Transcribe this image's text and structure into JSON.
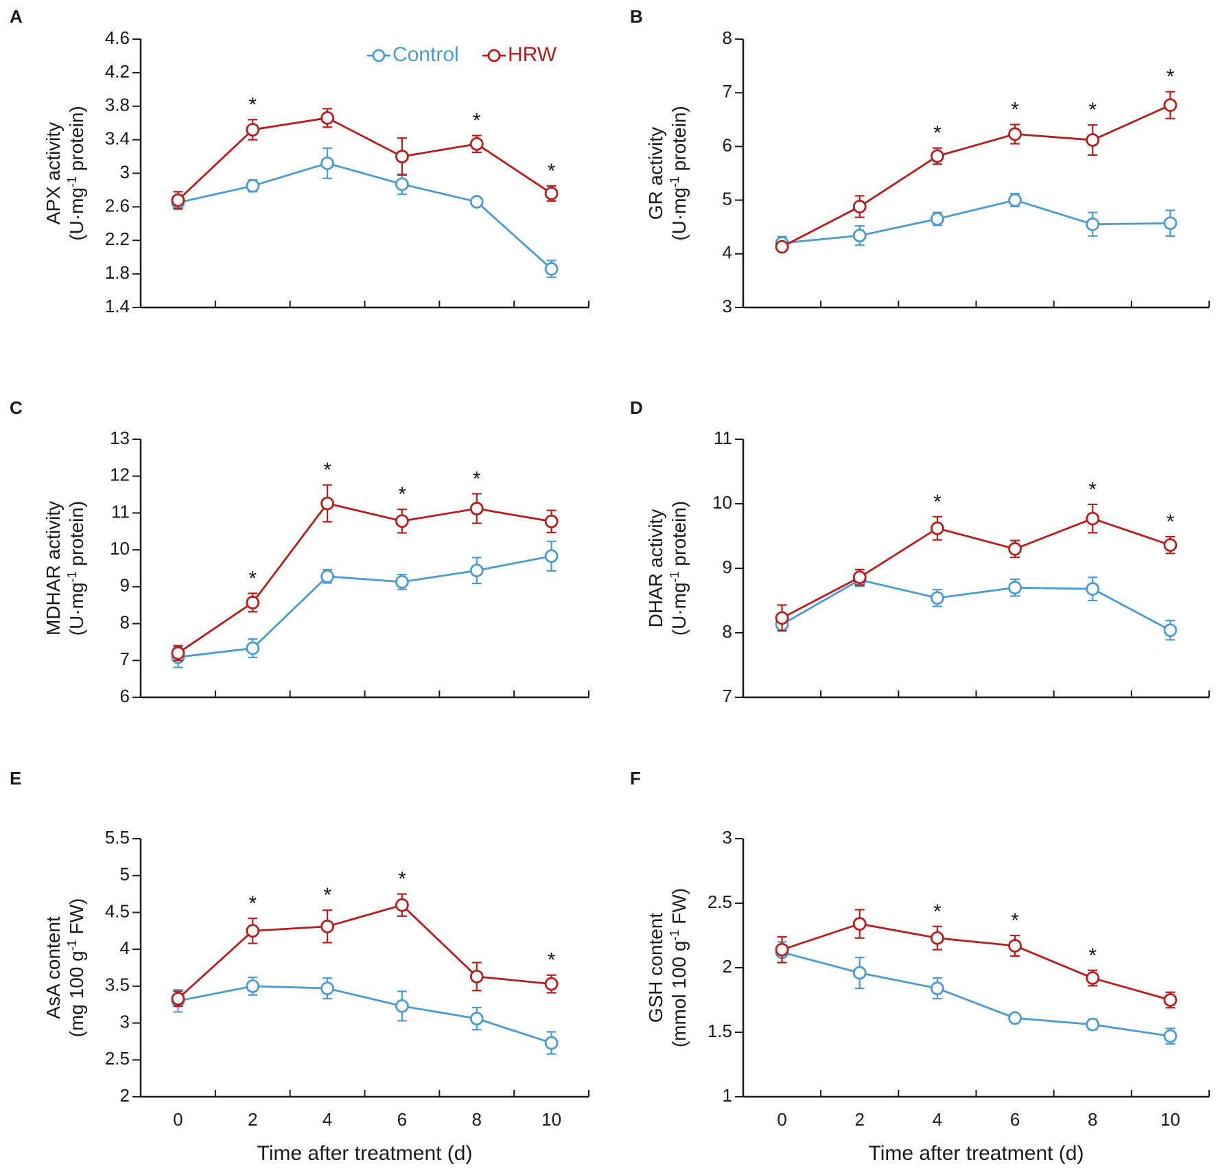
{
  "colors": {
    "control": "#4a9ad4",
    "hrw": "#b81c1c",
    "axis": "#1a1a1a"
  },
  "legend": {
    "control": "Control",
    "hrw": "HRW"
  },
  "x_title": "Time after treatment (d)",
  "x_ticks": [
    "0",
    "2",
    "4",
    "6",
    "8",
    "10"
  ],
  "chart_data": [
    {
      "panel": "A",
      "type": "line",
      "ylabel_line1": "APX activity",
      "ylabel_line2_pre": "(U·mg",
      "ylabel_sup": "-1",
      "ylabel_line2_post": " protein)",
      "ylim": [
        1.4,
        4.6
      ],
      "yticks": [
        "1.4",
        "1.8",
        "2.2",
        "2.6",
        "3",
        "3.4",
        "3.8",
        "4.2",
        "4.6"
      ],
      "x": [
        0,
        2,
        4,
        6,
        8,
        10
      ],
      "series": [
        {
          "name": "Control",
          "values": [
            2.65,
            2.85,
            3.12,
            2.87,
            2.66,
            1.86
          ],
          "errors": [
            0.08,
            0.07,
            0.18,
            0.12,
            0.05,
            0.1
          ]
        },
        {
          "name": "HRW",
          "values": [
            2.68,
            3.52,
            3.66,
            3.2,
            3.35,
            2.76
          ],
          "errors": [
            0.1,
            0.12,
            0.11,
            0.22,
            0.1,
            0.09
          ]
        }
      ],
      "significance": [
        false,
        true,
        false,
        false,
        true,
        true
      ],
      "show_legend": true
    },
    {
      "panel": "B",
      "type": "line",
      "ylabel_line1": "GR activity",
      "ylabel_line2_pre": "(U·mg",
      "ylabel_sup": "-1",
      "ylabel_line2_post": " protein)",
      "ylim": [
        3,
        8
      ],
      "yticks": [
        "3",
        "4",
        "5",
        "6",
        "7",
        "8"
      ],
      "x": [
        0,
        2,
        4,
        6,
        8,
        10
      ],
      "series": [
        {
          "name": "Control",
          "values": [
            4.2,
            4.34,
            4.65,
            5.0,
            4.55,
            4.57
          ],
          "errors": [
            0.12,
            0.18,
            0.12,
            0.12,
            0.22,
            0.24
          ]
        },
        {
          "name": "HRW",
          "values": [
            4.13,
            4.88,
            5.82,
            6.23,
            6.12,
            6.77
          ],
          "errors": [
            0.06,
            0.2,
            0.15,
            0.18,
            0.28,
            0.25
          ]
        }
      ],
      "significance": [
        false,
        false,
        true,
        true,
        true,
        true
      ],
      "show_legend": false
    },
    {
      "panel": "C",
      "type": "line",
      "ylabel_line1": "MDHAR activity",
      "ylabel_line2_pre": "(U·mg",
      "ylabel_sup": "-1",
      "ylabel_line2_post": " protein)",
      "ylim": [
        6,
        13
      ],
      "yticks": [
        "6",
        "7",
        "8",
        "9",
        "10",
        "11",
        "12",
        "13"
      ],
      "x": [
        0,
        2,
        4,
        6,
        8,
        10
      ],
      "series": [
        {
          "name": "Control",
          "values": [
            7.09,
            7.33,
            9.28,
            9.13,
            9.44,
            9.83
          ],
          "errors": [
            0.28,
            0.25,
            0.18,
            0.2,
            0.35,
            0.4
          ]
        },
        {
          "name": "HRW",
          "values": [
            7.2,
            8.57,
            11.26,
            10.78,
            11.12,
            10.77
          ],
          "errors": [
            0.2,
            0.25,
            0.5,
            0.32,
            0.4,
            0.3
          ]
        }
      ],
      "significance": [
        false,
        true,
        true,
        true,
        true,
        false
      ],
      "show_legend": false
    },
    {
      "panel": "D",
      "type": "line",
      "ylabel_line1": "DHAR activity",
      "ylabel_line2_pre": "(U·mg",
      "ylabel_sup": "-1",
      "ylabel_line2_post": " protein)",
      "ylim": [
        7,
        11
      ],
      "yticks": [
        "7",
        "8",
        "9",
        "10",
        "11"
      ],
      "x": [
        0,
        2,
        4,
        6,
        8,
        10
      ],
      "series": [
        {
          "name": "Control",
          "values": [
            8.13,
            8.82,
            8.54,
            8.7,
            8.68,
            8.04
          ],
          "errors": [
            0.1,
            0.1,
            0.13,
            0.13,
            0.18,
            0.15
          ]
        },
        {
          "name": "HRW",
          "values": [
            8.23,
            8.86,
            9.62,
            9.3,
            9.77,
            9.36
          ],
          "errors": [
            0.2,
            0.12,
            0.18,
            0.13,
            0.22,
            0.13
          ]
        }
      ],
      "significance": [
        false,
        false,
        true,
        false,
        true,
        true
      ],
      "show_legend": false
    },
    {
      "panel": "E",
      "type": "line",
      "ylabel_line1": "AsA content",
      "ylabel_line2_pre": "(mg 100 g",
      "ylabel_sup": "-1",
      "ylabel_line2_post": " FW)",
      "ylim": [
        2,
        5.5
      ],
      "yticks": [
        "2",
        "2.5",
        "3",
        "3.5",
        "4",
        "4.5",
        "5",
        "5.5"
      ],
      "x": [
        0,
        2,
        4,
        6,
        8,
        10
      ],
      "series": [
        {
          "name": "Control",
          "values": [
            3.3,
            3.5,
            3.47,
            3.23,
            3.06,
            2.73
          ],
          "errors": [
            0.15,
            0.12,
            0.14,
            0.2,
            0.15,
            0.15
          ]
        },
        {
          "name": "HRW",
          "values": [
            3.33,
            4.25,
            4.31,
            4.6,
            3.63,
            3.53
          ],
          "errors": [
            0.1,
            0.17,
            0.22,
            0.15,
            0.19,
            0.12
          ]
        }
      ],
      "significance": [
        false,
        true,
        true,
        true,
        false,
        true
      ],
      "show_legend": false
    },
    {
      "panel": "F",
      "type": "line",
      "ylabel_line1": "GSH content",
      "ylabel_line2_pre": "(mmol 100 g",
      "ylabel_sup": "-1",
      "ylabel_line2_post": " FW)",
      "ylim": [
        1,
        3
      ],
      "yticks": [
        "1",
        "1.5",
        "2",
        "2.5",
        "3"
      ],
      "x": [
        0,
        2,
        4,
        6,
        8,
        10
      ],
      "series": [
        {
          "name": "Control",
          "values": [
            2.12,
            1.96,
            1.84,
            1.61,
            1.56,
            1.47
          ],
          "errors": [
            0.08,
            0.12,
            0.08,
            0.02,
            0.04,
            0.06
          ]
        },
        {
          "name": "HRW",
          "values": [
            2.14,
            2.34,
            2.23,
            2.17,
            1.92,
            1.75
          ],
          "errors": [
            0.1,
            0.11,
            0.09,
            0.08,
            0.06,
            0.06
          ]
        }
      ],
      "significance": [
        false,
        false,
        true,
        true,
        true,
        false
      ],
      "show_legend": false
    }
  ]
}
